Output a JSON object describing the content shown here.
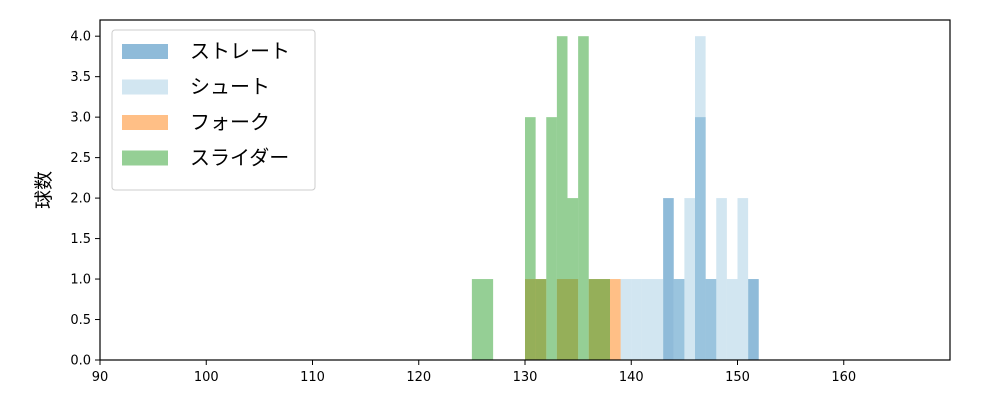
{
  "chart_data": {
    "type": "bar",
    "title": "",
    "xlabel": "",
    "ylabel": "球数",
    "xlim": [
      90,
      170
    ],
    "ylim": [
      0,
      4.2
    ],
    "xticks": [
      90,
      100,
      110,
      120,
      130,
      140,
      150,
      160
    ],
    "yticks": [
      "0.0",
      "0.5",
      "1.0",
      "1.5",
      "2.0",
      "2.5",
      "3.0",
      "3.5",
      "4.0"
    ],
    "grid": false,
    "legend_position": "upper-left",
    "series": [
      {
        "name": "ストレート",
        "color": "#1f77b4",
        "bins": [
          {
            "x0": 143.0,
            "x1": 144.0,
            "count": 2
          },
          {
            "x0": 144.0,
            "x1": 145.0,
            "count": 1
          },
          {
            "x0": 146.0,
            "x1": 147.0,
            "count": 3
          },
          {
            "x0": 147.0,
            "x1": 148.0,
            "count": 1
          },
          {
            "x0": 151.0,
            "x1": 152.0,
            "count": 1
          }
        ]
      },
      {
        "name": "シュート",
        "color": "#a6cee3",
        "bins": [
          {
            "x0": 139.0,
            "x1": 140.0,
            "count": 1
          },
          {
            "x0": 140.0,
            "x1": 141.0,
            "count": 1
          },
          {
            "x0": 141.0,
            "x1": 142.0,
            "count": 1
          },
          {
            "x0": 142.0,
            "x1": 143.0,
            "count": 1
          },
          {
            "x0": 144.0,
            "x1": 145.0,
            "count": 1
          },
          {
            "x0": 145.0,
            "x1": 146.0,
            "count": 2
          },
          {
            "x0": 146.0,
            "x1": 147.0,
            "count": 4
          },
          {
            "x0": 147.0,
            "x1": 148.0,
            "count": 1
          },
          {
            "x0": 148.0,
            "x1": 149.0,
            "count": 2
          },
          {
            "x0": 149.0,
            "x1": 150.0,
            "count": 1
          },
          {
            "x0": 150.0,
            "x1": 151.0,
            "count": 2
          }
        ]
      },
      {
        "name": "フォーク",
        "color": "#ff7f0e",
        "bins": [
          {
            "x0": 130.0,
            "x1": 132.0,
            "count": 1
          },
          {
            "x0": 133.0,
            "x1": 135.0,
            "count": 1
          },
          {
            "x0": 136.0,
            "x1": 138.0,
            "count": 1
          },
          {
            "x0": 138.0,
            "x1": 139.0,
            "count": 1
          }
        ]
      },
      {
        "name": "スライダー",
        "color": "#2ca02c",
        "bins": [
          {
            "x0": 125.0,
            "x1": 127.0,
            "count": 1
          },
          {
            "x0": 130.0,
            "x1": 131.0,
            "count": 3
          },
          {
            "x0": 131.0,
            "x1": 132.0,
            "count": 1
          },
          {
            "x0": 132.0,
            "x1": 133.0,
            "count": 3
          },
          {
            "x0": 133.0,
            "x1": 134.0,
            "count": 4
          },
          {
            "x0": 134.0,
            "x1": 135.0,
            "count": 2
          },
          {
            "x0": 135.0,
            "x1": 136.0,
            "count": 4
          },
          {
            "x0": 136.0,
            "x1": 138.0,
            "count": 1
          }
        ]
      }
    ]
  }
}
